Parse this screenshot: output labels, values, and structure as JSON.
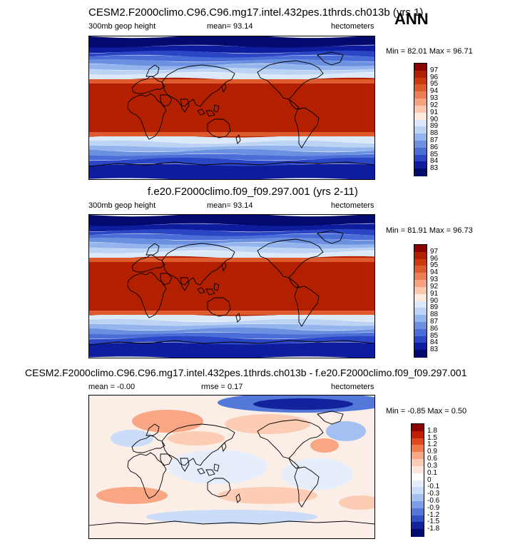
{
  "season": "ANN",
  "panels": [
    {
      "title": "CESM2.F2000climo.C96.C96.mg17.intel.432pes.1thrds.ch013b (yrs 1)",
      "left_label": "300mb geop height",
      "center_label": "mean=  93.14",
      "right_label": "hectometers",
      "minmax": "Min =  82.01 Max =  96.71",
      "kind": "abs",
      "colorbar_labels": [
        "97",
        "96",
        "95",
        "94",
        "93",
        "92",
        "91",
        "90",
        "89",
        "88",
        "87",
        "86",
        "85",
        "84",
        "83"
      ]
    },
    {
      "title": "f.e20.F2000climo.f09_f09.297.001 (yrs 2-11)",
      "left_label": "300mb geop height",
      "center_label": "mean=  93.14",
      "right_label": "hectometers",
      "minmax": "Min =  81.91 Max =  96.73",
      "kind": "abs",
      "colorbar_labels": [
        "97",
        "96",
        "95",
        "94",
        "93",
        "92",
        "91",
        "90",
        "89",
        "88",
        "87",
        "86",
        "85",
        "84",
        "83"
      ]
    },
    {
      "title": "CESM2.F2000climo.C96.C96.mg17.intel.432pes.1thrds.ch013b - f.e20.F2000climo.f09_f09.297.001",
      "left_label": "mean =  -0.00",
      "center_label": "rmse =  0.17",
      "right_label": "hectometers",
      "minmax": "Min =  -0.85 Max =   0.50",
      "kind": "diff",
      "colorbar_labels": [
        "1.8",
        "1.5",
        "1.2",
        "0.9",
        "0.6",
        "0.3",
        "0.1",
        "0",
        "-0.1",
        "-0.3",
        "-0.6",
        "-0.9",
        "-1.2",
        "-1.5",
        "-1.8"
      ]
    }
  ],
  "colors": {
    "abs_scale": [
      "#8b0000",
      "#b22000",
      "#cc3a0c",
      "#dd5a2c",
      "#ec7c54",
      "#f6a280",
      "#fbc8ad",
      "#fdebe0",
      "#dce9f9",
      "#bcd3f4",
      "#93b4ec",
      "#6b90e0",
      "#4a6dd8",
      "#2a46c4",
      "#0e1d9e",
      "#020a6e"
    ],
    "diff_scale": [
      "#8b0000",
      "#c01e00",
      "#de4a1c",
      "#f07a4a",
      "#f8a684",
      "#fcccb4",
      "#fde8dc",
      "#ffffff",
      "#e6eefc",
      "#cadcf8",
      "#a2c0f2",
      "#7a9ee8",
      "#5378da",
      "#3050c4",
      "#12229c",
      "#020a6e"
    ]
  }
}
